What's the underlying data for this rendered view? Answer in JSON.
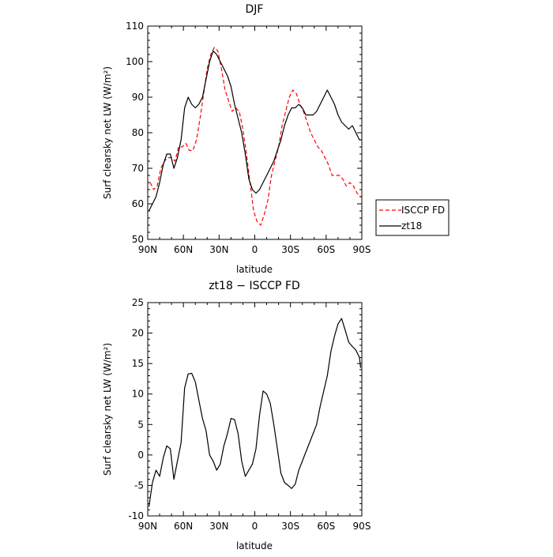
{
  "chart_data": [
    {
      "type": "line",
      "title": "DJF",
      "xlabel": "latitude",
      "ylabel": "Surf clearsky net LW (W/m²)",
      "xlim": [
        -90,
        90
      ],
      "ylim": [
        50,
        110
      ],
      "xticks": [
        -90,
        -60,
        -30,
        0,
        30,
        60,
        90
      ],
      "xtick_labels": [
        "90N",
        "60N",
        "30N",
        "0",
        "30S",
        "60S",
        "90S"
      ],
      "yticks": [
        50,
        60,
        70,
        80,
        90,
        100,
        110
      ],
      "legend": "outside-right",
      "series": [
        {
          "name": "ISCCP FD",
          "color": "#ff0000",
          "dash": "dashed",
          "x": [
            -88,
            -85,
            -82,
            -79,
            -76,
            -73,
            -70,
            -67,
            -64,
            -61,
            -58,
            -55,
            -52,
            -49,
            -46,
            -43,
            -40,
            -37,
            -34,
            -31,
            -28,
            -25,
            -22,
            -19,
            -16,
            -13,
            -10,
            -7,
            -4,
            -1,
            2,
            5,
            8,
            11,
            14,
            17,
            20,
            23,
            26,
            29,
            32,
            35,
            38,
            41,
            44,
            47,
            50,
            53,
            56,
            59,
            62,
            65,
            68,
            71,
            74,
            77,
            80,
            83,
            86,
            89
          ],
          "y": [
            66,
            64,
            65,
            70,
            72,
            73,
            73,
            72,
            76,
            76,
            77,
            75,
            75,
            78,
            84,
            91,
            98,
            102,
            104,
            103,
            98,
            92,
            89,
            86,
            87,
            86,
            81,
            74,
            66,
            58,
            55,
            54,
            57,
            61,
            68,
            72,
            76,
            82,
            86,
            90,
            92,
            91,
            88,
            86,
            83,
            80,
            78,
            76,
            75,
            73,
            71,
            68,
            68,
            68,
            67,
            65,
            66,
            65,
            63,
            62
          ]
        },
        {
          "name": "zt18",
          "color": "#000000",
          "dash": "solid",
          "x": [
            -89,
            -86,
            -83,
            -80,
            -77,
            -74,
            -71,
            -68,
            -65,
            -62,
            -59,
            -56,
            -53,
            -50,
            -47,
            -44,
            -41,
            -38,
            -35,
            -32,
            -29,
            -26,
            -23,
            -20,
            -17,
            -14,
            -11,
            -8,
            -5,
            -2,
            1,
            4,
            7,
            10,
            13,
            16,
            19,
            22,
            25,
            28,
            31,
            34,
            37,
            40,
            43,
            46,
            49,
            52,
            55,
            58,
            61,
            64,
            67,
            70,
            73,
            76,
            79,
            82,
            85,
            88,
            89
          ],
          "y": [
            58,
            60,
            62,
            66,
            71,
            74,
            74,
            70,
            73,
            78,
            87,
            90,
            88,
            87,
            88,
            90,
            95,
            100,
            103,
            102,
            100,
            98,
            96,
            93,
            88,
            84,
            80,
            74,
            67,
            64,
            63,
            64,
            66,
            68,
            70,
            72,
            75,
            78,
            82,
            85,
            87,
            87,
            88,
            87,
            85,
            85,
            85,
            86,
            88,
            90,
            92,
            90,
            88,
            85,
            83,
            82,
            81,
            82,
            80,
            78,
            78
          ]
        }
      ]
    },
    {
      "type": "line",
      "title": "zt18 − ISCCP FD",
      "xlabel": "latitude",
      "ylabel": "Surf clearsky net LW (W/m²)",
      "xlim": [
        -90,
        90
      ],
      "ylim": [
        -10,
        25
      ],
      "xticks": [
        -90,
        -60,
        -30,
        0,
        30,
        60,
        90
      ],
      "xtick_labels": [
        "90N",
        "60N",
        "30N",
        "0",
        "30S",
        "60S",
        "90S"
      ],
      "yticks": [
        -10,
        -5,
        0,
        5,
        10,
        15,
        20,
        25
      ],
      "series": [
        {
          "color": "#000000",
          "dash": "solid",
          "x": [
            -89,
            -86,
            -83,
            -80,
            -77,
            -74,
            -71,
            -68,
            -65,
            -62,
            -59,
            -56,
            -53,
            -50,
            -47,
            -44,
            -41,
            -38,
            -35,
            -32,
            -29,
            -26,
            -23,
            -20,
            -17,
            -14,
            -11,
            -8,
            -5,
            -2,
            1,
            4,
            7,
            10,
            13,
            16,
            19,
            22,
            25,
            28,
            31,
            34,
            37,
            40,
            43,
            46,
            49,
            52,
            55,
            58,
            61,
            64,
            67,
            70,
            73,
            76,
            79,
            82,
            85,
            88,
            89
          ],
          "y": [
            -8.5,
            -4.5,
            -2.5,
            -3.5,
            -0.5,
            1.5,
            1,
            -4,
            -1,
            2,
            11,
            13.3,
            13.4,
            12,
            9,
            6,
            4,
            0,
            -1,
            -2.5,
            -1.5,
            1.5,
            3.5,
            6,
            5.8,
            3.5,
            -1,
            -3.5,
            -2.5,
            -1.5,
            1,
            6.5,
            10.5,
            10,
            8.5,
            5,
            1,
            -3,
            -4.5,
            -5,
            -5.5,
            -4.8,
            -2.5,
            -1,
            0.5,
            2,
            3.5,
            5,
            8,
            10.5,
            13,
            17,
            19.5,
            21.5,
            22.4,
            20.5,
            18.5,
            17.8,
            17.2,
            16,
            14.3
          ]
        }
      ]
    }
  ]
}
